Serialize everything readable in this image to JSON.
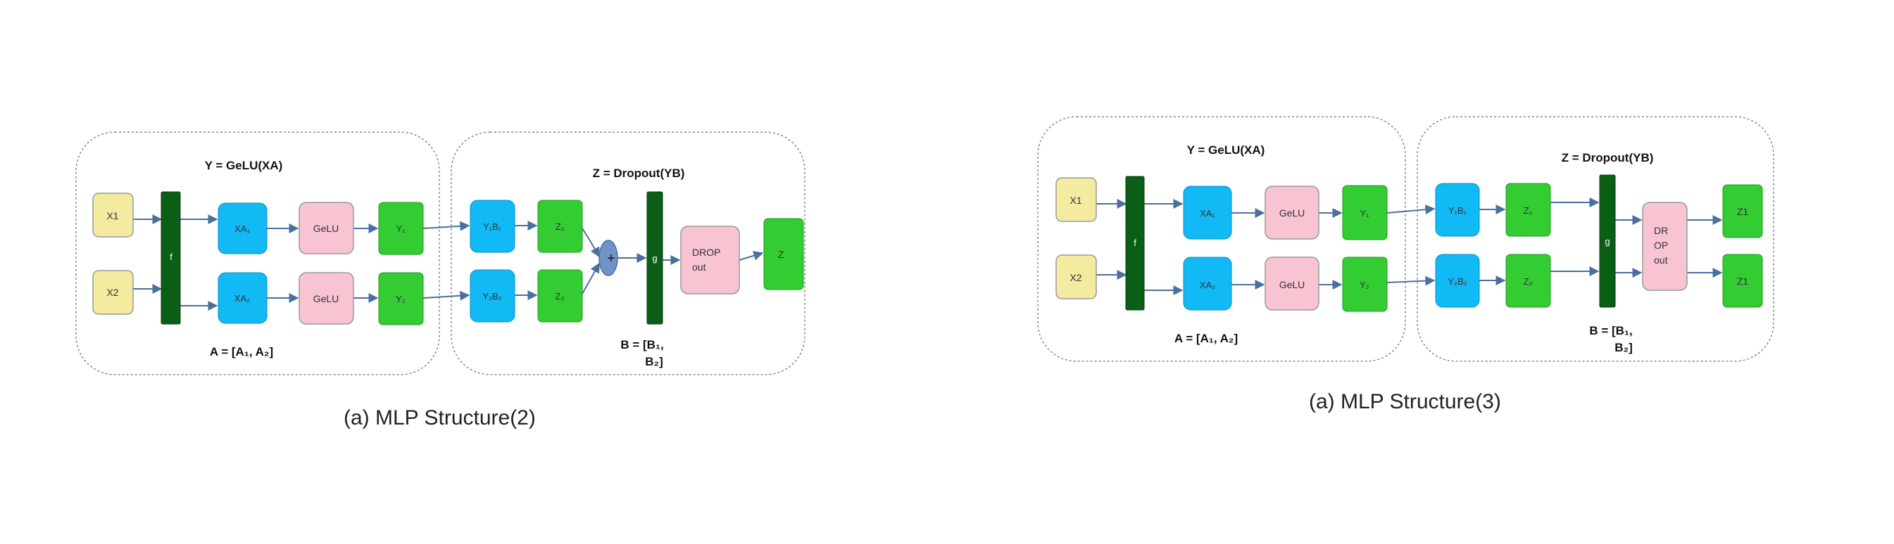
{
  "colors": {
    "input": "#f2eba0",
    "xa": "#11b9f5",
    "gelu": "#f8c4d2",
    "green": "#33cc33",
    "bar": "#0b5e16",
    "arrow": "#4a6fa0",
    "border": "#888888",
    "plus": "#6f93c7"
  },
  "figure1": {
    "caption": "(a) MLP Structure(2)",
    "eq_y": "Y = GeLU(XA)",
    "eq_z": "Z = Dropout(YB)",
    "eq_a": "A = [A₁, A₂]",
    "eq_b1": "B = [B₁,",
    "eq_b2": "B₂]",
    "x1": "X1",
    "x2": "X2",
    "f": "f",
    "g": "g",
    "xa1": "XA₁",
    "xa2": "XA₂",
    "gelu": "GeLU",
    "y1": "Y₁",
    "y2": "Y₂",
    "yb1": "Y₁B₁",
    "yb2": "Y₂B₂",
    "z1": "Z₁",
    "z2": "Z₂",
    "plus": "+",
    "drop1": "DROP",
    "drop2": "out",
    "z": "Z"
  },
  "figure2": {
    "caption": "(a) MLP Structure(3)",
    "eq_y": "Y = GeLU(XA)",
    "eq_z": "Z = Dropout(YB)",
    "eq_a": "A = [A₁, A₂]",
    "eq_b1": "B = [B₁,",
    "eq_b2": "B₂]",
    "x1": "X1",
    "x2": "X2",
    "f": "f",
    "g": "g",
    "xa1": "XA₁",
    "xa2": "XA₂",
    "gelu": "GeLU",
    "y1": "Y₁",
    "y2": "Y₂",
    "yb1": "Y₁B₁",
    "yb2": "Y₂B₂",
    "z1": "Z₁",
    "z2": "Z₂",
    "drop1": "DR",
    "drop2": "OP",
    "drop3": "out",
    "out1": "Z1",
    "out2": "Z1"
  }
}
